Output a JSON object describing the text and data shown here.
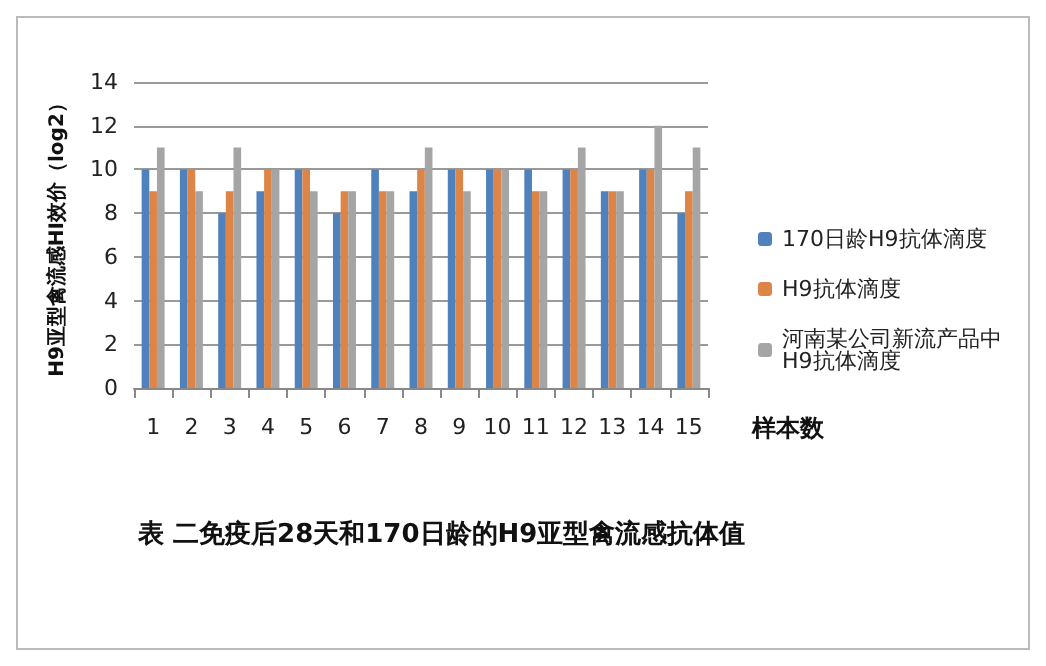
{
  "chart_data": {
    "type": "bar",
    "title": "表 二免疫后28天和170日龄的H9亚型禽流感抗体值",
    "xlabel": "样本数",
    "ylabel": "H9亚型禽流感HI效价（log2）",
    "categories": [
      "1",
      "2",
      "3",
      "4",
      "5",
      "6",
      "7",
      "8",
      "9",
      "10",
      "11",
      "12",
      "13",
      "14",
      "15"
    ],
    "series": [
      {
        "name": "170日龄H9抗体滴度",
        "color": "#4f81bd",
        "values": [
          10,
          10,
          8,
          9,
          10,
          8,
          10,
          9,
          10,
          10,
          10,
          10,
          9,
          10,
          8
        ]
      },
      {
        "name": "H9抗体滴度",
        "color": "#dd8447",
        "values": [
          9,
          10,
          9,
          10,
          10,
          9,
          9,
          10,
          10,
          10,
          9,
          10,
          9,
          10,
          9
        ]
      },
      {
        "name": "河南某公司新流产品中H9抗体滴度",
        "color": "#a5a5a5",
        "values": [
          11,
          9,
          11,
          10,
          9,
          9,
          9,
          11,
          9,
          10,
          9,
          11,
          9,
          12,
          11
        ]
      }
    ],
    "ylim": [
      0,
      14
    ],
    "yticks": [
      0,
      2,
      4,
      6,
      8,
      10,
      12,
      14
    ],
    "grid": "y",
    "legend": "right"
  }
}
